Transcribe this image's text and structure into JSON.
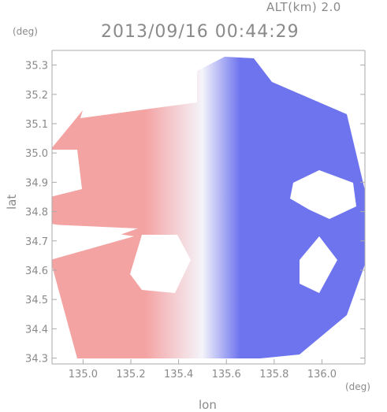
{
  "header": {
    "altitude_label": "ALT(km) 2.0",
    "timestamp": "2013/09/16 00:44:29"
  },
  "chart_data": {
    "type": "heatmap",
    "title": "2013/09/16 00:44:29",
    "subtitle": "ALT(km) 2.0",
    "xlabel": "lon",
    "ylabel": "lat",
    "x_unit": "(deg)",
    "y_unit": "(deg)",
    "xlim": [
      134.87,
      136.18
    ],
    "ylim": [
      34.28,
      35.35
    ],
    "x_ticks": [
      135.0,
      135.2,
      135.4,
      135.6,
      135.8,
      136.0
    ],
    "x_tick_labels": [
      "135.0",
      "135.2",
      "135.4",
      "135.6",
      "135.8",
      "136.0"
    ],
    "y_ticks": [
      34.3,
      34.4,
      34.5,
      34.6,
      34.7,
      34.8,
      34.9,
      35.0,
      35.1,
      35.2,
      35.3
    ],
    "y_tick_labels": [
      "34.3",
      "34.4",
      "34.5",
      "34.6",
      "34.7",
      "34.8",
      "34.9",
      "35.0",
      "35.1",
      "35.2",
      "35.3"
    ],
    "grid": false,
    "colormap": {
      "negative": "#6e74ee",
      "zero": "#f4f4fa",
      "positive": "#f4a3a3"
    },
    "radar_center": [
      135.52,
      34.78
    ],
    "radar_radius_deg_lon": 0.62,
    "radar_radius_deg_lat": 0.52
  }
}
